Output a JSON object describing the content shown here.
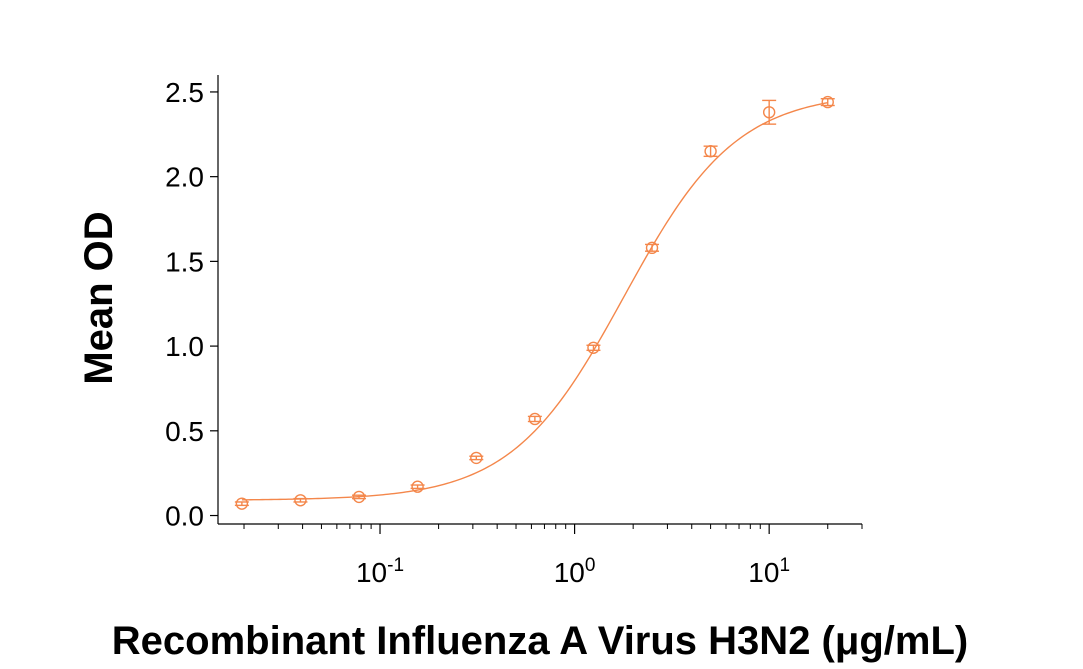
{
  "chart_data": {
    "type": "scatter",
    "title": "",
    "xlabel": "Recombinant Influenza A Virus H3N2 (μg/mL)",
    "ylabel": "Mean OD",
    "x_scale": "log",
    "xlim": [
      0.0147,
      30
    ],
    "ylim": [
      -0.05,
      2.6
    ],
    "grid": false,
    "legend": "none",
    "color": "#f4874b",
    "x_ticks": [
      {
        "value": 0.1,
        "base": "10",
        "exp": "-1"
      },
      {
        "value": 1,
        "base": "10",
        "exp": "0"
      },
      {
        "value": 10,
        "base": "10",
        "exp": "1"
      }
    ],
    "y_ticks": [
      {
        "value": 0.0,
        "label": "0.0"
      },
      {
        "value": 0.5,
        "label": "0.5"
      },
      {
        "value": 1.0,
        "label": "1.0"
      },
      {
        "value": 1.5,
        "label": "1.5"
      },
      {
        "value": 2.0,
        "label": "2.0"
      },
      {
        "value": 2.5,
        "label": "2.5"
      }
    ],
    "series": [
      {
        "x": [
          0.0195,
          0.039,
          0.078,
          0.156,
          0.3125,
          0.625,
          1.25,
          2.5,
          5,
          10,
          20
        ],
        "y": [
          0.07,
          0.09,
          0.11,
          0.17,
          0.34,
          0.57,
          0.99,
          1.58,
          2.15,
          2.38,
          2.44
        ],
        "error": [
          0.01,
          0.01,
          0.01,
          0.01,
          0.01,
          0.015,
          0.015,
          0.02,
          0.03,
          0.07,
          0.02
        ]
      }
    ],
    "fit_curve": {
      "model": "4PL",
      "bottom": 0.09,
      "top": 2.5,
      "ec50": 1.8,
      "hill": 1.5
    }
  }
}
